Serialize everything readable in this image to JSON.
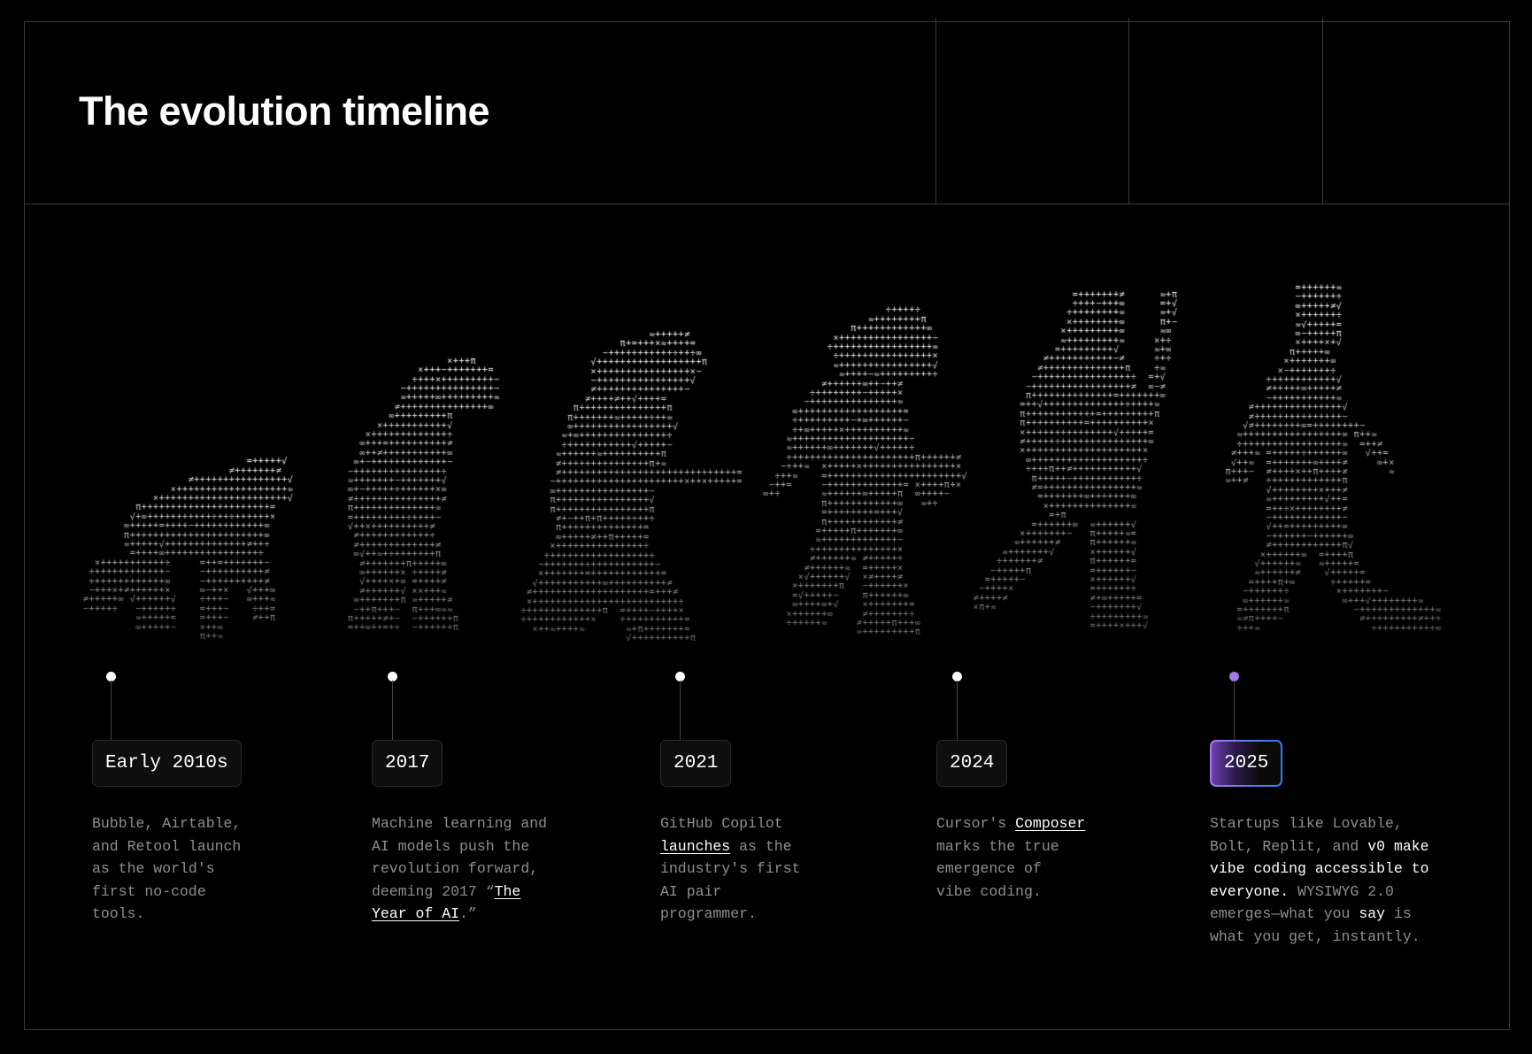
{
  "header": {
    "title": "The evolution timeline"
  },
  "colors": {
    "background": "#000000",
    "border": "#3a3a3a",
    "text_muted": "#8e8e8e",
    "accent_purple": "#a57bea",
    "accent_blue": "#2f7df5"
  },
  "timeline": [
    {
      "label": "Early 2010s",
      "active": false,
      "lines": [
        [
          {
            "t": "Bubble, Airtable,",
            "s": "plain"
          }
        ],
        [
          {
            "t": "and Retool launch",
            "s": "plain"
          }
        ],
        [
          {
            "t": "as the world's",
            "s": "plain"
          }
        ],
        [
          {
            "t": "first no-code",
            "s": "plain"
          }
        ],
        [
          {
            "t": "tools.",
            "s": "plain"
          }
        ]
      ]
    },
    {
      "label": "2017",
      "active": false,
      "lines": [
        [
          {
            "t": "Machine learning and",
            "s": "plain"
          }
        ],
        [
          {
            "t": "AI models push the",
            "s": "plain"
          }
        ],
        [
          {
            "t": "revolution forward,",
            "s": "plain"
          }
        ],
        [
          {
            "t": "deeming 2017 “",
            "s": "plain"
          },
          {
            "t": "The",
            "s": "link"
          }
        ],
        [
          {
            "t": "Year of AI",
            "s": "link"
          },
          {
            "t": ".”",
            "s": "plain"
          }
        ]
      ]
    },
    {
      "label": "2021",
      "active": false,
      "lines": [
        [
          {
            "t": "GitHub Copilot",
            "s": "plain"
          }
        ],
        [
          {
            "t": "launches",
            "s": "link"
          },
          {
            "t": " as the",
            "s": "plain"
          }
        ],
        [
          {
            "t": "industry's first",
            "s": "plain"
          }
        ],
        [
          {
            "t": "AI pair",
            "s": "plain"
          }
        ],
        [
          {
            "t": "programmer.",
            "s": "plain"
          }
        ]
      ]
    },
    {
      "label": "2024",
      "active": false,
      "lines": [
        [
          {
            "t": "Cursor's ",
            "s": "plain"
          },
          {
            "t": "Composer",
            "s": "link"
          }
        ],
        [
          {
            "t": "marks the true",
            "s": "plain"
          }
        ],
        [
          {
            "t": "emergence of",
            "s": "plain"
          }
        ],
        [
          {
            "t": "vibe coding.",
            "s": "plain"
          }
        ]
      ]
    },
    {
      "label": "2025",
      "active": true,
      "lines": [
        [
          {
            "t": "Startups like Lovable,",
            "s": "plain"
          }
        ],
        [
          {
            "t": "Bolt, Replit, and ",
            "s": "plain"
          },
          {
            "t": "v0 make",
            "s": "strong"
          }
        ],
        [
          {
            "t": "vibe coding accessible to",
            "s": "strong"
          }
        ],
        [
          {
            "t": "everyone.",
            "s": "strong"
          },
          {
            "t": " WYSIWYG 2.0",
            "s": "plain"
          }
        ],
        [
          {
            "t": "emerges—what you ",
            "s": "plain"
          },
          {
            "t": "say",
            "s": "strong"
          },
          {
            "t": " is",
            "s": "plain"
          }
        ],
        [
          {
            "t": "what you get, instantly.",
            "s": "plain"
          }
        ]
      ]
    }
  ]
}
